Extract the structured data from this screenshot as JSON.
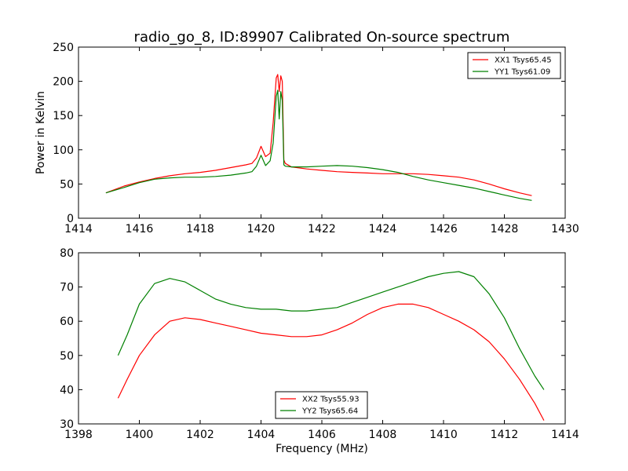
{
  "title": "radio_go_8, ID:89907 Calibrated On-source spectrum",
  "chart_data": [
    {
      "type": "line",
      "title": "radio_go_8, ID:89907 Calibrated On-source spectrum",
      "xlabel": "",
      "ylabel": "Power in Kelvin",
      "xlim": [
        1414,
        1430
      ],
      "ylim": [
        0,
        250
      ],
      "xticks": [
        1414,
        1416,
        1418,
        1420,
        1422,
        1424,
        1426,
        1428,
        1430
      ],
      "yticks": [
        0,
        50,
        100,
        150,
        200,
        250
      ],
      "grid": false,
      "legend_position": "top-right",
      "series": [
        {
          "name": "XX1 Tsys65.45",
          "color": "#ff0000",
          "x": [
            1414.9,
            1415.5,
            1416.0,
            1416.5,
            1417.0,
            1417.5,
            1418.0,
            1418.5,
            1419.0,
            1419.5,
            1419.7,
            1419.85,
            1420.0,
            1420.15,
            1420.3,
            1420.4,
            1420.5,
            1420.55,
            1420.6,
            1420.65,
            1420.7,
            1420.75,
            1420.8,
            1421.0,
            1421.5,
            1422.0,
            1422.5,
            1423.0,
            1423.5,
            1424.0,
            1424.5,
            1425.0,
            1425.5,
            1426.0,
            1426.5,
            1427.0,
            1427.5,
            1428.0,
            1428.5,
            1428.9
          ],
          "values": [
            37,
            47,
            53,
            58,
            62,
            65,
            67,
            70,
            74,
            78,
            80,
            88,
            105,
            90,
            95,
            140,
            205,
            210,
            185,
            208,
            200,
            85,
            80,
            75,
            72,
            70,
            68,
            67,
            66,
            65,
            65,
            65,
            64,
            62,
            60,
            56,
            50,
            43,
            37,
            33
          ]
        },
        {
          "name": "YY1 Tsys61.09",
          "color": "#008000",
          "x": [
            1414.9,
            1415.5,
            1416.0,
            1416.5,
            1417.0,
            1417.5,
            1418.0,
            1418.5,
            1419.0,
            1419.5,
            1419.7,
            1419.85,
            1420.0,
            1420.15,
            1420.3,
            1420.4,
            1420.5,
            1420.55,
            1420.6,
            1420.65,
            1420.7,
            1420.75,
            1420.8,
            1421.0,
            1421.5,
            1422.0,
            1422.5,
            1423.0,
            1423.5,
            1424.0,
            1424.5,
            1425.0,
            1425.5,
            1426.0,
            1426.5,
            1427.0,
            1427.5,
            1428.0,
            1428.5,
            1428.9
          ],
          "values": [
            37,
            45,
            52,
            57,
            59,
            60,
            60,
            61,
            63,
            66,
            68,
            76,
            92,
            77,
            84,
            110,
            178,
            187,
            145,
            185,
            172,
            78,
            76,
            75,
            75,
            76,
            77,
            76,
            74,
            71,
            67,
            61,
            56,
            52,
            48,
            44,
            39,
            34,
            29,
            26
          ]
        }
      ]
    },
    {
      "type": "line",
      "title": "",
      "xlabel": "Frequency (MHz)",
      "ylabel": "",
      "xlim": [
        1398,
        1414
      ],
      "ylim": [
        30,
        80
      ],
      "xticks": [
        1398,
        1400,
        1402,
        1404,
        1406,
        1408,
        1410,
        1412,
        1414
      ],
      "yticks": [
        30,
        40,
        50,
        60,
        70,
        80
      ],
      "grid": false,
      "legend_position": "bottom-center",
      "series": [
        {
          "name": "XX2 Tsys55.93",
          "color": "#ff0000",
          "x": [
            1399.3,
            1399.6,
            1400.0,
            1400.5,
            1401.0,
            1401.5,
            1402.0,
            1402.5,
            1403.0,
            1403.5,
            1404.0,
            1404.5,
            1405.0,
            1405.5,
            1406.0,
            1406.5,
            1407.0,
            1407.5,
            1408.0,
            1408.5,
            1409.0,
            1409.5,
            1410.0,
            1410.5,
            1411.0,
            1411.5,
            1412.0,
            1412.5,
            1413.0,
            1413.3
          ],
          "values": [
            37.5,
            43,
            50,
            56,
            60,
            61,
            60.5,
            59.5,
            58.5,
            57.5,
            56.5,
            56,
            55.5,
            55.5,
            56,
            57.5,
            59.5,
            62,
            64,
            65,
            65,
            64,
            62,
            60,
            57.5,
            54,
            49,
            43,
            36,
            31
          ]
        },
        {
          "name": "YY2 Tsys65.64",
          "color": "#008000",
          "x": [
            1399.3,
            1399.6,
            1400.0,
            1400.5,
            1401.0,
            1401.5,
            1402.0,
            1402.5,
            1403.0,
            1403.5,
            1404.0,
            1404.5,
            1405.0,
            1405.5,
            1406.0,
            1406.5,
            1407.0,
            1407.5,
            1408.0,
            1408.5,
            1409.0,
            1409.5,
            1410.0,
            1410.5,
            1411.0,
            1411.5,
            1412.0,
            1412.5,
            1413.0,
            1413.3
          ],
          "values": [
            50,
            56,
            65,
            71,
            72.5,
            71.5,
            69,
            66.5,
            65,
            64,
            63.5,
            63.5,
            63,
            63,
            63.5,
            64,
            65.5,
            67,
            68.5,
            70,
            71.5,
            73,
            74,
            74.5,
            73,
            68,
            61,
            52,
            44,
            40
          ]
        }
      ]
    }
  ]
}
